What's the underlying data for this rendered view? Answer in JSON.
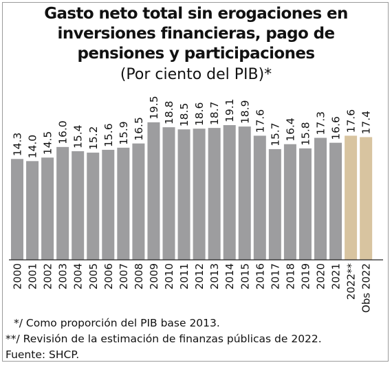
{
  "chart_data": {
    "type": "bar",
    "title": "Gasto neto total sin erogaciones en inversiones financieras, pago de pensiones y participaciones",
    "title_lines": [
      "Gasto neto total sin erogaciones en",
      "inversiones financieras, pago de",
      "pensiones y participaciones"
    ],
    "subtitle": "(Por ciento del PIB)*",
    "xlabel": "",
    "ylabel": "",
    "ylim": [
      0,
      20
    ],
    "grid": false,
    "legend": "none",
    "categories": [
      "2000",
      "2001",
      "2002",
      "2003",
      "2004",
      "2005",
      "2006",
      "2007",
      "2008",
      "2009",
      "2010",
      "2011",
      "2012",
      "2013",
      "2014",
      "2015",
      "2016",
      "2017",
      "2018",
      "2019",
      "2020",
      "2021",
      "2022**",
      "Obs 2022"
    ],
    "values": [
      14.3,
      14.0,
      14.5,
      16.0,
      15.4,
      15.2,
      15.6,
      15.9,
      16.5,
      19.5,
      18.8,
      18.5,
      18.6,
      18.7,
      19.1,
      18.9,
      17.6,
      15.7,
      16.4,
      15.8,
      17.3,
      16.6,
      17.6,
      17.4
    ],
    "value_labels": [
      "14.3",
      "14.0",
      "14.5",
      "16.0",
      "15.4",
      "15.2",
      "15.6",
      "15.9",
      "16.5",
      "19.5",
      "18.8",
      "18.5",
      "18.6",
      "18.7",
      "19.1",
      "18.9",
      "17.6",
      "15.7",
      "16.4",
      "15.8",
      "17.3",
      "16.6",
      "17.6",
      "17.4"
    ],
    "colors": {
      "historical": "#9d9d9f",
      "estimate": "#d8c4a0"
    },
    "highlighted_categories": [
      "2022**",
      "Obs 2022"
    ]
  },
  "notes": {
    "note1": "*/ Como proporción del PIB base 2013.",
    "note2": "**/ Revisión de la estimación de finanzas públicas de 2022.",
    "source": "Fuente: SHCP."
  }
}
